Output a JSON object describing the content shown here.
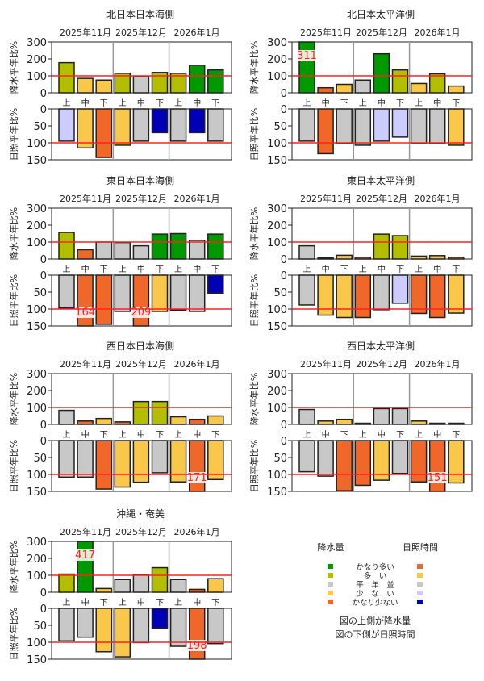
{
  "colors": {
    "precip": {
      "much_above": "#009900",
      "above": "#b4be00",
      "normal": "#c8c8c8",
      "below": "#f9c74a",
      "much_below": "#f0672a"
    },
    "sunshine": {
      "much_above": "#f0672a",
      "above": "#f9c74a",
      "normal": "#c8c8c8",
      "below": "#ccccff",
      "much_below": "#0000b4"
    },
    "reference_line": "#ff2020"
  },
  "axis_labels": {
    "precip": "降水平年比%",
    "sunshine": "日照平年比%"
  },
  "precip_ticks": [
    "0",
    "100",
    "200",
    "300"
  ],
  "sunshine_ticks": [
    "0",
    "50",
    "100",
    "150"
  ],
  "periods": [
    "上",
    "中",
    "下",
    "上",
    "中",
    "下",
    "上",
    "中",
    "下"
  ],
  "months": [
    "2025年11月",
    "2025年12月",
    "2026年1月"
  ],
  "chart_data": [
    {
      "type": "bar",
      "title": "北日本日本海側",
      "precip": {
        "ylim": [
          0,
          300
        ],
        "values": [
          178,
          85,
          75,
          115,
          97,
          120,
          115,
          163,
          135
        ],
        "classes": [
          "above",
          "below",
          "below",
          "above",
          "normal",
          "above",
          "above",
          "much_above",
          "much_above"
        ]
      },
      "sunshine": {
        "ylim": [
          0,
          150
        ],
        "inverted": true,
        "values": [
          95,
          115,
          143,
          107,
          95,
          70,
          95,
          70,
          95
        ],
        "classes": [
          "below",
          "above",
          "much_above",
          "above",
          "normal",
          "much_below",
          "normal",
          "much_below",
          "normal"
        ]
      }
    },
    {
      "type": "bar",
      "title": "北日本太平洋側",
      "precip": {
        "ylim": [
          0,
          300
        ],
        "values": [
          311,
          30,
          50,
          75,
          230,
          135,
          55,
          112,
          40
        ],
        "classes": [
          "much_above",
          "much_below",
          "below",
          "normal",
          "much_above",
          "above",
          "below",
          "above",
          "below"
        ]
      },
      "sunshine": {
        "ylim": [
          0,
          150
        ],
        "inverted": true,
        "values": [
          95,
          132,
          102,
          107,
          95,
          83,
          102,
          102,
          107
        ],
        "classes": [
          "normal",
          "much_above",
          "normal",
          "normal",
          "below",
          "below",
          "normal",
          "normal",
          "above"
        ]
      }
    },
    {
      "type": "bar",
      "title": "東日本日本海側",
      "precip": {
        "ylim": [
          0,
          300
        ],
        "values": [
          157,
          55,
          100,
          97,
          78,
          147,
          150,
          110,
          147
        ],
        "classes": [
          "above",
          "much_below",
          "normal",
          "normal",
          "normal",
          "much_above",
          "much_above",
          "normal",
          "much_above"
        ]
      },
      "sunshine": {
        "ylim": [
          0,
          150
        ],
        "inverted": true,
        "values": [
          97,
          164,
          145,
          107,
          209,
          107,
          103,
          107,
          53
        ],
        "classes": [
          "normal",
          "much_above",
          "much_above",
          "normal",
          "much_above",
          "above",
          "normal",
          "normal",
          "much_below"
        ]
      }
    },
    {
      "type": "bar",
      "title": "東日本太平洋側",
      "precip": {
        "ylim": [
          0,
          300
        ],
        "values": [
          78,
          5,
          22,
          10,
          147,
          138,
          17,
          20,
          10
        ],
        "classes": [
          "normal",
          "much_below",
          "below",
          "much_below",
          "above",
          "above",
          "below",
          "below",
          "much_below"
        ]
      },
      "sunshine": {
        "ylim": [
          0,
          150
        ],
        "inverted": true,
        "values": [
          88,
          118,
          125,
          125,
          102,
          83,
          113,
          125,
          112
        ],
        "classes": [
          "normal",
          "above",
          "above",
          "much_above",
          "normal",
          "below",
          "much_above",
          "much_above",
          "above"
        ]
      }
    },
    {
      "type": "bar",
      "title": "西日本日本海側",
      "precip": {
        "ylim": [
          0,
          300
        ],
        "values": [
          83,
          20,
          35,
          15,
          135,
          135,
          45,
          30,
          50
        ],
        "classes": [
          "normal",
          "much_below",
          "below",
          "much_below",
          "above",
          "above",
          "below",
          "much_below",
          "below"
        ]
      },
      "sunshine": {
        "ylim": [
          0,
          150
        ],
        "inverted": true,
        "values": [
          108,
          108,
          143,
          137,
          123,
          95,
          122,
          171,
          115
        ],
        "classes": [
          "normal",
          "normal",
          "much_above",
          "above",
          "above",
          "normal",
          "above",
          "much_above",
          "above"
        ]
      }
    },
    {
      "type": "bar",
      "title": "西日本太平洋側",
      "precip": {
        "ylim": [
          0,
          300
        ],
        "values": [
          88,
          20,
          30,
          2,
          93,
          93,
          20,
          5,
          5
        ],
        "classes": [
          "normal",
          "below",
          "below",
          "much_below",
          "normal",
          "normal",
          "below",
          "much_below",
          "much_below"
        ]
      },
      "sunshine": {
        "ylim": [
          0,
          150
        ],
        "inverted": true,
        "values": [
          92,
          105,
          148,
          132,
          117,
          97,
          122,
          151,
          125
        ],
        "classes": [
          "normal",
          "normal",
          "much_above",
          "much_above",
          "above",
          "normal",
          "much_above",
          "much_above",
          "above"
        ]
      }
    },
    {
      "type": "bar",
      "title": "沖縄・奄美",
      "precip": {
        "ylim": [
          0,
          300
        ],
        "values": [
          107,
          417,
          22,
          75,
          103,
          145,
          75,
          17,
          80
        ],
        "classes": [
          "above",
          "much_above",
          "below",
          "normal",
          "normal",
          "above",
          "normal",
          "much_below",
          "below"
        ]
      },
      "sunshine": {
        "ylim": [
          0,
          150
        ],
        "inverted": true,
        "values": [
          96,
          85,
          128,
          143,
          101,
          58,
          112,
          198,
          104
        ],
        "classes": [
          "normal",
          "normal",
          "above",
          "above",
          "normal",
          "much_below",
          "normal",
          "much_above",
          "normal"
        ]
      }
    }
  ],
  "legend": {
    "precip_title": "降水量",
    "sunshine_title": "日照時間",
    "items": [
      {
        "label": "かなり多い",
        "precip": "much_above",
        "sunshine": "much_above"
      },
      {
        "label": "多　い",
        "precip": "above",
        "sunshine": "above"
      },
      {
        "label": "平　年　並",
        "precip": "normal",
        "sunshine": "normal"
      },
      {
        "label": "少　な　い",
        "precip": "below",
        "sunshine": "below"
      },
      {
        "label": "かなり少ない",
        "precip": "much_below",
        "sunshine": "much_below"
      }
    ],
    "note_top": "図の上側が降水量",
    "note_bottom": "図の下側が日照時間"
  }
}
